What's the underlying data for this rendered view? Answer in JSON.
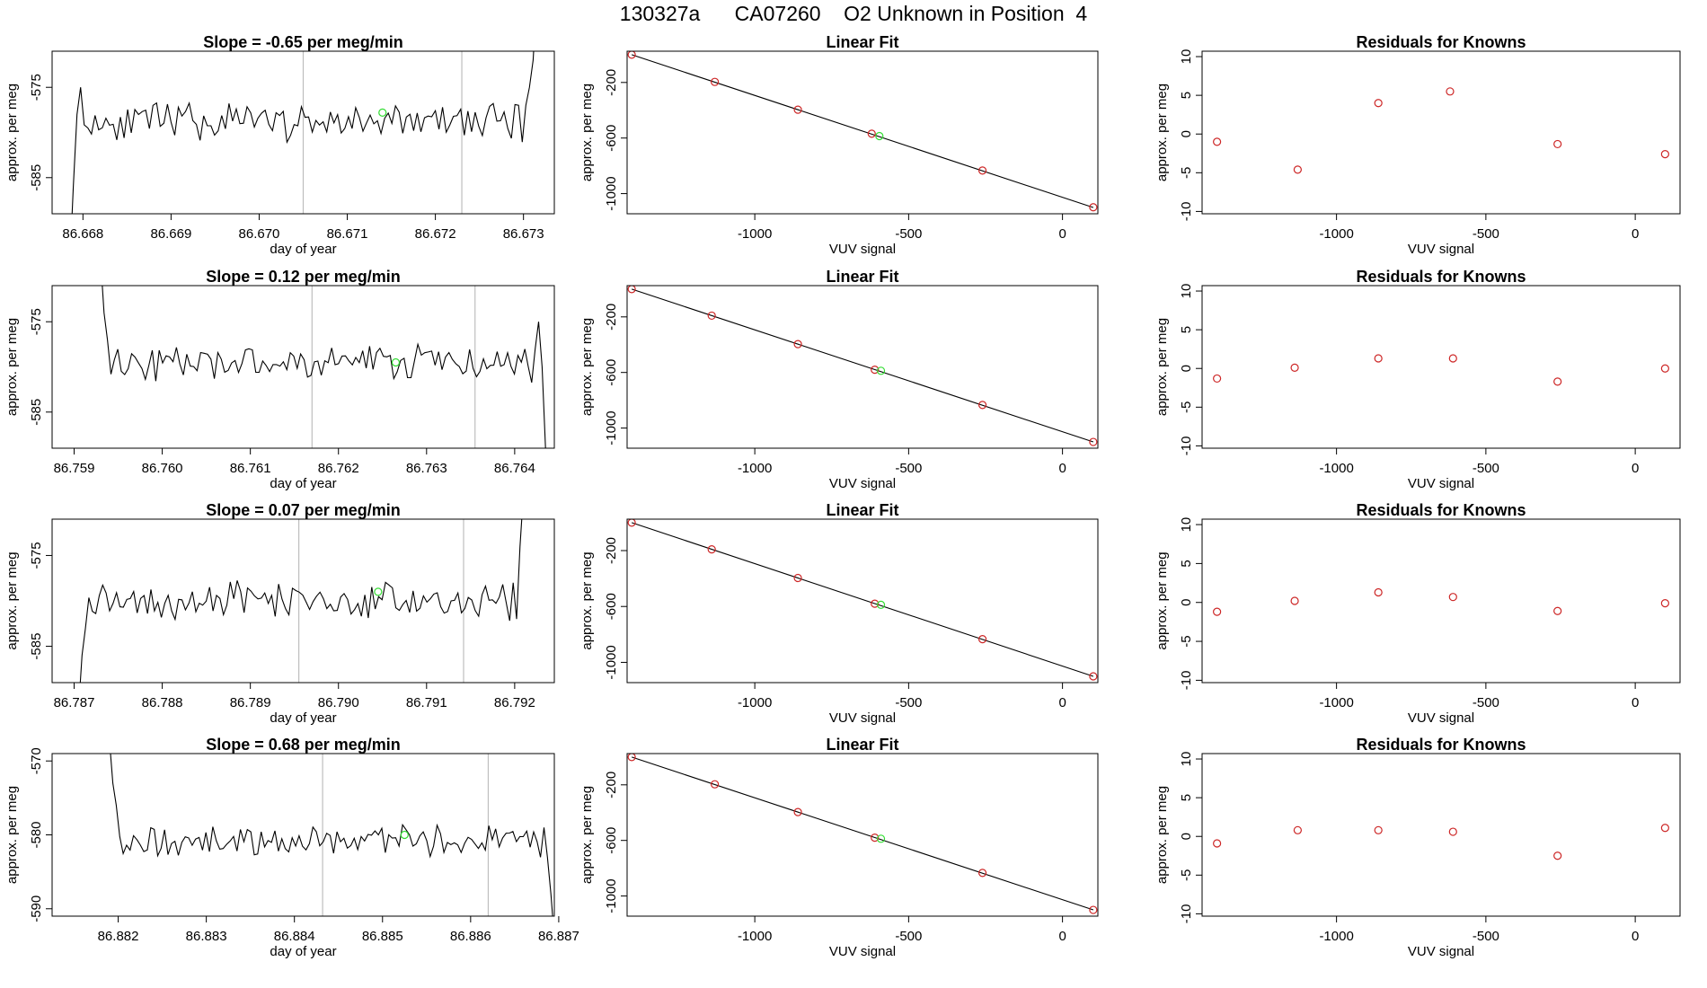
{
  "title": "130327a      CA07260    O2 Unknown in Position  4",
  "chart_data": [
    {
      "type": "line",
      "panel": "timeseries",
      "title": "Slope =  -0.65  per meg/min",
      "xlabel": "day of year",
      "ylabel": "approx. per meg",
      "xlim": [
        86.66765,
        86.67335
      ],
      "ylim": [
        -589,
        -571
      ],
      "xticks": [
        86.668,
        86.669,
        86.67,
        86.671,
        86.672,
        86.673
      ],
      "xtick_labels": [
        "86.668",
        "86.669",
        "86.670",
        "86.671",
        "86.672",
        "86.673"
      ],
      "yticks": [
        -575,
        -585
      ],
      "ytick_labels": [
        "-575",
        "-585"
      ],
      "vlines": [
        86.6705,
        86.6723
      ],
      "point": {
        "x": 86.6714,
        "y": -577.8
      },
      "trace": {
        "start": 86.66785,
        "end": 86.67315,
        "n": 130,
        "mean": -578.8,
        "amp": 1.7,
        "seed": 11,
        "head": [
          -595,
          -586,
          -578,
          -575
        ],
        "tail": [
          -577,
          -575,
          -572,
          -565
        ]
      }
    },
    {
      "type": "scatter",
      "panel": "linear-fit",
      "title": "Linear Fit",
      "xlabel": "VUV signal",
      "ylabel": "approx. per meg",
      "xlim": [
        -1415,
        115
      ],
      "ylim": [
        -1145,
        25
      ],
      "xticks": [
        -1000,
        -500,
        0
      ],
      "xtick_labels": [
        "-1000",
        "-500",
        "0"
      ],
      "yticks": [
        -200,
        -600,
        -1000
      ],
      "ytick_labels": [
        "-200",
        "-600",
        "-1000"
      ],
      "fit_line": {
        "x": [
          -1400,
          100
        ],
        "y": [
          0,
          -1100
        ]
      },
      "knowns": {
        "x": [
          -1400,
          -1130,
          -860,
          -620,
          -260,
          100
        ],
        "y": [
          0,
          -196,
          -396,
          -569,
          -834,
          -1098
        ]
      },
      "unknown": {
        "x": -595,
        "y": -586
      }
    },
    {
      "type": "scatter",
      "panel": "residuals",
      "title": "Residuals for Knowns",
      "xlabel": "VUV signal",
      "ylabel": "approx. per meg",
      "xlim": [
        -1450,
        150
      ],
      "ylim": [
        -10.3,
        10.7
      ],
      "xticks": [
        -1000,
        -500,
        0
      ],
      "xtick_labels": [
        "-1000",
        "-500",
        "0"
      ],
      "yticks": [
        10,
        5,
        0,
        -5,
        -10
      ],
      "ytick_labels": [
        "10",
        "5",
        "0",
        "-5",
        "-10"
      ],
      "residuals": {
        "x": [
          -1400,
          -1130,
          -860,
          -620,
          -260,
          100
        ],
        "y": [
          -1.0,
          -4.6,
          4.0,
          5.5,
          -1.3,
          -2.6
        ]
      }
    },
    {
      "type": "line",
      "panel": "timeseries",
      "title": "Slope =  0.12  per meg/min",
      "xlabel": "day of year",
      "ylabel": "approx. per meg",
      "xlim": [
        86.75875,
        86.76445
      ],
      "ylim": [
        -589,
        -571
      ],
      "xticks": [
        86.759,
        86.76,
        86.761,
        86.762,
        86.763,
        86.764
      ],
      "xtick_labels": [
        "86.759",
        "86.760",
        "86.761",
        "86.762",
        "86.763",
        "86.764"
      ],
      "yticks": [
        -575,
        -585
      ],
      "ytick_labels": [
        "-575",
        "-585"
      ],
      "vlines": [
        86.7617,
        86.76355
      ],
      "point": {
        "x": 86.76265,
        "y": -579.5
      },
      "trace": {
        "start": 86.7593,
        "end": 86.76435,
        "n": 130,
        "mean": -579.6,
        "amp": 1.6,
        "seed": 23,
        "head": [
          -568,
          -574,
          -577
        ],
        "tail": [
          -578,
          -575,
          -580,
          -589
        ]
      }
    },
    {
      "type": "scatter",
      "panel": "linear-fit",
      "title": "Linear Fit",
      "xlabel": "VUV signal",
      "ylabel": "approx. per meg",
      "xlim": [
        -1415,
        115
      ],
      "ylim": [
        -1145,
        25
      ],
      "xticks": [
        -1000,
        -500,
        0
      ],
      "xtick_labels": [
        "-1000",
        "-500",
        "0"
      ],
      "yticks": [
        -200,
        -600,
        -1000
      ],
      "ytick_labels": [
        "-200",
        "-600",
        "-1000"
      ],
      "fit_line": {
        "x": [
          -1400,
          100
        ],
        "y": [
          0,
          -1100
        ]
      },
      "knowns": {
        "x": [
          -1400,
          -1140,
          -860,
          -610,
          -260,
          100
        ],
        "y": [
          0,
          -191,
          -396,
          -580,
          -834,
          -1100
        ]
      },
      "unknown": {
        "x": -590,
        "y": -588
      }
    },
    {
      "type": "scatter",
      "panel": "residuals",
      "title": "Residuals for Knowns",
      "xlabel": "VUV signal",
      "ylabel": "approx. per meg",
      "xlim": [
        -1450,
        150
      ],
      "ylim": [
        -10.3,
        10.7
      ],
      "xticks": [
        -1000,
        -500,
        0
      ],
      "xtick_labels": [
        "-1000",
        "-500",
        "0"
      ],
      "yticks": [
        10,
        5,
        0,
        -5,
        -10
      ],
      "ytick_labels": [
        "10",
        "5",
        "0",
        "-5",
        "-10"
      ],
      "residuals": {
        "x": [
          -1400,
          -1140,
          -860,
          -610,
          -260,
          100
        ],
        "y": [
          -1.3,
          0.1,
          1.3,
          1.3,
          -1.7,
          0.0
        ]
      }
    },
    {
      "type": "line",
      "panel": "timeseries",
      "title": "Slope =  0.07  per meg/min",
      "xlabel": "day of year",
      "ylabel": "approx. per meg",
      "xlim": [
        86.78675,
        86.79245
      ],
      "ylim": [
        -589,
        -571
      ],
      "xticks": [
        86.787,
        86.788,
        86.789,
        86.79,
        86.791,
        86.792
      ],
      "xtick_labels": [
        "86.787",
        "86.788",
        "86.789",
        "86.790",
        "86.791",
        "86.792"
      ],
      "yticks": [
        -575,
        -585
      ],
      "ytick_labels": [
        "-575",
        "-585"
      ],
      "vlines": [
        86.78955,
        86.79142
      ],
      "point": {
        "x": 86.79045,
        "y": -579.0
      },
      "trace": {
        "start": 86.78705,
        "end": 86.7921,
        "n": 130,
        "mean": -580.0,
        "amp": 1.7,
        "seed": 37,
        "head": [
          -592,
          -586,
          -583
        ],
        "tail": [
          -578,
          -582,
          -574,
          -568
        ]
      }
    },
    {
      "type": "scatter",
      "panel": "linear-fit",
      "title": "Linear Fit",
      "xlabel": "VUV signal",
      "ylabel": "approx. per meg",
      "xlim": [
        -1415,
        115
      ],
      "ylim": [
        -1145,
        25
      ],
      "xticks": [
        -1000,
        -500,
        0
      ],
      "xtick_labels": [
        "-1000",
        "-500",
        "0"
      ],
      "yticks": [
        -200,
        -600,
        -1000
      ],
      "ytick_labels": [
        "-200",
        "-600",
        "-1000"
      ],
      "fit_line": {
        "x": [
          -1400,
          100
        ],
        "y": [
          0,
          -1100
        ]
      },
      "knowns": {
        "x": [
          -1400,
          -1140,
          -860,
          -610,
          -260,
          100
        ],
        "y": [
          0,
          -191,
          -396,
          -580,
          -834,
          -1100
        ]
      },
      "unknown": {
        "x": -590,
        "y": -588
      }
    },
    {
      "type": "scatter",
      "panel": "residuals",
      "title": "Residuals for Knowns",
      "xlabel": "VUV signal",
      "ylabel": "approx. per meg",
      "xlim": [
        -1450,
        150
      ],
      "ylim": [
        -10.3,
        10.7
      ],
      "xticks": [
        -1000,
        -500,
        0
      ],
      "xtick_labels": [
        "-1000",
        "-500",
        "0"
      ],
      "yticks": [
        10,
        5,
        0,
        -5,
        -10
      ],
      "ytick_labels": [
        "10",
        "5",
        "0",
        "-5",
        "-10"
      ],
      "residuals": {
        "x": [
          -1400,
          -1140,
          -860,
          -610,
          -260,
          100
        ],
        "y": [
          -1.2,
          0.2,
          1.3,
          0.7,
          -1.1,
          -0.1
        ]
      }
    },
    {
      "type": "line",
      "panel": "timeseries",
      "title": "Slope =  0.68  per meg/min",
      "xlabel": "day of year",
      "ylabel": "approx. per meg",
      "xlim": [
        86.88125,
        86.88695
      ],
      "ylim": [
        -591,
        -569
      ],
      "xticks": [
        86.882,
        86.883,
        86.884,
        86.885,
        86.886,
        86.887
      ],
      "xtick_labels": [
        "86.882",
        "86.883",
        "86.884",
        "86.885",
        "86.886",
        "86.887"
      ],
      "yticks": [
        -570,
        -580,
        -590
      ],
      "ytick_labels": [
        "-570",
        "-580",
        "-590"
      ],
      "vlines": [
        86.88432,
        86.8862
      ],
      "point": {
        "x": 86.88525,
        "y": -580.0
      },
      "trace": {
        "start": 86.8819,
        "end": 86.88695,
        "n": 130,
        "mean": -580.8,
        "amp": 1.8,
        "seed": 53,
        "head": [
          -567,
          -573,
          -576
        ],
        "tail": [
          -579,
          -583,
          -588,
          -594
        ]
      }
    },
    {
      "type": "scatter",
      "panel": "linear-fit",
      "title": "Linear Fit",
      "xlabel": "VUV signal",
      "ylabel": "approx. per meg",
      "xlim": [
        -1415,
        115
      ],
      "ylim": [
        -1145,
        25
      ],
      "xticks": [
        -1000,
        -500,
        0
      ],
      "xtick_labels": [
        "-1000",
        "-500",
        "0"
      ],
      "yticks": [
        -200,
        -600,
        -1000
      ],
      "ytick_labels": [
        "-200",
        "-600",
        "-1000"
      ],
      "fit_line": {
        "x": [
          -1400,
          100
        ],
        "y": [
          0,
          -1100
        ]
      },
      "knowns": {
        "x": [
          -1400,
          -1130,
          -860,
          -610,
          -260,
          100
        ],
        "y": [
          0,
          -196,
          -396,
          -580,
          -834,
          -1100
        ]
      },
      "unknown": {
        "x": -590,
        "y": -588
      }
    },
    {
      "type": "scatter",
      "panel": "residuals",
      "title": "Residuals for Knowns",
      "xlabel": "VUV signal",
      "ylabel": "approx. per meg",
      "xlim": [
        -1450,
        150
      ],
      "ylim": [
        -10.3,
        10.7
      ],
      "xticks": [
        -1000,
        -500,
        0
      ],
      "xtick_labels": [
        "-1000",
        "-500",
        "0"
      ],
      "yticks": [
        10,
        5,
        0,
        -5,
        -10
      ],
      "ytick_labels": [
        "10",
        "5",
        "0",
        "-5",
        "-10"
      ],
      "residuals": {
        "x": [
          -1400,
          -1130,
          -860,
          -610,
          -260,
          100
        ],
        "y": [
          -0.9,
          0.8,
          0.8,
          0.6,
          -2.5,
          1.1
        ]
      }
    }
  ],
  "colors": {
    "line": "#000000",
    "vline": "#bebebe",
    "known_point": "#cd2626",
    "unknown_point": "#33dd33"
  }
}
